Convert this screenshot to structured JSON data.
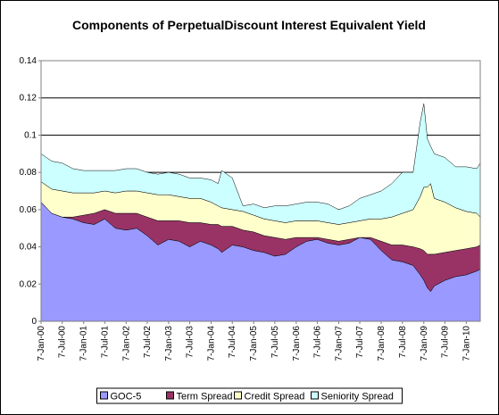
{
  "chart_data": {
    "type": "area",
    "title": "Components of PerpetualDiscount Interest Equivalent Yield",
    "xlabel": "",
    "ylabel": "",
    "ylim": [
      0,
      0.14
    ],
    "yticks": [
      "0",
      "0.02",
      "0.04",
      "0.06",
      "0.08",
      "0.1",
      "0.12",
      "0.14"
    ],
    "xticks": [
      "7-Jan-00",
      "7-Jul-00",
      "7-Jan-01",
      "7-Jul-01",
      "7-Jan-02",
      "7-Jul-02",
      "7-Jan-03",
      "7-Jul-03",
      "7-Jan-04",
      "7-Jul-04",
      "7-Jan-05",
      "7-Jul-05",
      "7-Jan-06",
      "7-Jul-06",
      "7-Jan-07",
      "7-Jul-07",
      "7-Jan-08",
      "7-Jul-08",
      "7-Jan-09",
      "7-Jul-09",
      "7-Jan-10"
    ],
    "grid": "horizontal",
    "legend_position": "bottom",
    "stacked": true,
    "x": [
      "2000-01-07",
      "2000-04-07",
      "2000-07-07",
      "2000-10-07",
      "2001-01-07",
      "2001-04-07",
      "2001-07-07",
      "2001-10-07",
      "2002-01-07",
      "2002-04-07",
      "2002-07-07",
      "2002-10-07",
      "2003-01-07",
      "2003-04-07",
      "2003-07-07",
      "2003-10-07",
      "2004-01-07",
      "2004-03-07",
      "2004-04-07",
      "2004-07-07",
      "2004-10-07",
      "2005-01-07",
      "2005-04-07",
      "2005-07-07",
      "2005-10-07",
      "2006-01-07",
      "2006-04-07",
      "2006-07-07",
      "2006-10-07",
      "2007-01-07",
      "2007-04-07",
      "2007-07-07",
      "2007-10-07",
      "2008-01-07",
      "2008-04-07",
      "2008-07-07",
      "2008-10-07",
      "2008-12-07",
      "2009-01-07",
      "2009-02-07",
      "2009-03-07",
      "2009-04-07",
      "2009-07-07",
      "2009-10-07",
      "2010-01-07",
      "2010-04-07",
      "2010-05-07"
    ],
    "series": [
      {
        "name": "GOC-5",
        "color": "#9999FF",
        "values": [
          0.064,
          0.058,
          0.056,
          0.055,
          0.053,
          0.052,
          0.055,
          0.05,
          0.049,
          0.05,
          0.046,
          0.041,
          0.044,
          0.043,
          0.04,
          0.043,
          0.041,
          0.039,
          0.037,
          0.041,
          0.04,
          0.038,
          0.037,
          0.035,
          0.036,
          0.04,
          0.043,
          0.044,
          0.042,
          0.041,
          0.042,
          0.045,
          0.044,
          0.038,
          0.033,
          0.032,
          0.03,
          0.025,
          0.022,
          0.018,
          0.016,
          0.019,
          0.022,
          0.024,
          0.025,
          0.027,
          0.028
        ]
      },
      {
        "name": "Term Spread",
        "color": "#993366",
        "values": [
          0.0,
          0.0,
          0.0,
          0.001,
          0.004,
          0.006,
          0.005,
          0.008,
          0.009,
          0.008,
          0.01,
          0.013,
          0.01,
          0.011,
          0.013,
          0.01,
          0.011,
          0.013,
          0.014,
          0.01,
          0.009,
          0.01,
          0.009,
          0.01,
          0.008,
          0.005,
          0.002,
          0.001,
          0.002,
          0.002,
          0.002,
          0.0,
          0.001,
          0.005,
          0.008,
          0.009,
          0.01,
          0.014,
          0.016,
          0.018,
          0.02,
          0.017,
          0.015,
          0.014,
          0.014,
          0.013,
          0.013
        ]
      },
      {
        "name": "Credit Spread",
        "color": "#FFFFCC",
        "values": [
          0.011,
          0.013,
          0.014,
          0.013,
          0.012,
          0.011,
          0.01,
          0.011,
          0.012,
          0.012,
          0.013,
          0.014,
          0.014,
          0.013,
          0.013,
          0.013,
          0.012,
          0.01,
          0.01,
          0.009,
          0.01,
          0.009,
          0.009,
          0.009,
          0.009,
          0.009,
          0.009,
          0.009,
          0.009,
          0.009,
          0.009,
          0.009,
          0.01,
          0.012,
          0.015,
          0.017,
          0.02,
          0.028,
          0.034,
          0.036,
          0.038,
          0.03,
          0.027,
          0.023,
          0.02,
          0.018,
          0.015
        ]
      },
      {
        "name": "Seniority Spread",
        "color": "#CCFFFF",
        "values": [
          0.015,
          0.015,
          0.015,
          0.013,
          0.012,
          0.012,
          0.011,
          0.012,
          0.012,
          0.012,
          0.011,
          0.011,
          0.012,
          0.012,
          0.011,
          0.011,
          0.012,
          0.012,
          0.02,
          0.017,
          0.003,
          0.006,
          0.006,
          0.008,
          0.009,
          0.009,
          0.01,
          0.01,
          0.01,
          0.008,
          0.009,
          0.012,
          0.013,
          0.015,
          0.018,
          0.022,
          0.02,
          0.04,
          0.045,
          0.026,
          0.02,
          0.024,
          0.024,
          0.022,
          0.024,
          0.024,
          0.029
        ]
      }
    ]
  }
}
